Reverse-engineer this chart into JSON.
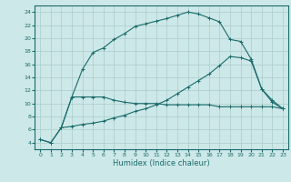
{
  "xlabel": "Humidex (Indice chaleur)",
  "bg_color": "#cde8e8",
  "line_color": "#1a6b6b",
  "grid_color": "#aacccc",
  "xlim": [
    -0.5,
    23.5
  ],
  "ylim": [
    3,
    25
  ],
  "xticks": [
    0,
    1,
    2,
    3,
    4,
    5,
    6,
    7,
    8,
    9,
    10,
    11,
    12,
    13,
    14,
    15,
    16,
    17,
    18,
    19,
    20,
    21,
    22,
    23
  ],
  "yticks": [
    4,
    6,
    8,
    10,
    12,
    14,
    16,
    18,
    20,
    22,
    24
  ],
  "curve1_x": [
    0,
    1,
    2,
    3,
    4,
    5,
    6,
    7,
    8,
    9,
    10,
    11,
    12,
    13,
    14,
    15,
    16,
    17,
    18,
    19,
    20,
    21,
    22,
    23
  ],
  "curve1_y": [
    4.5,
    4.0,
    6.3,
    11.0,
    15.2,
    17.8,
    18.5,
    19.8,
    20.7,
    21.8,
    22.2,
    22.6,
    23.0,
    23.5,
    24.0,
    23.7,
    23.1,
    22.5,
    19.8,
    19.5,
    16.8,
    12.2,
    10.2,
    9.2
  ],
  "curve2_x": [
    2,
    3,
    4,
    5,
    6,
    7,
    8,
    9,
    10,
    11,
    12,
    13,
    14,
    15,
    16,
    17,
    18,
    19,
    20,
    21,
    22,
    23
  ],
  "curve2_y": [
    6.3,
    11.0,
    11.0,
    11.0,
    11.0,
    10.5,
    10.2,
    10.0,
    10.0,
    10.0,
    9.8,
    9.8,
    9.8,
    9.8,
    9.8,
    9.5,
    9.5,
    9.5,
    9.5,
    9.5,
    9.5,
    9.2
  ],
  "curve3_x": [
    0,
    1,
    2,
    3,
    4,
    5,
    6,
    7,
    8,
    9,
    10,
    11,
    12,
    13,
    14,
    15,
    16,
    17,
    18,
    19,
    20,
    21,
    22,
    23
  ],
  "curve3_y": [
    4.5,
    4.0,
    6.3,
    6.5,
    6.8,
    7.0,
    7.3,
    7.8,
    8.2,
    8.8,
    9.2,
    9.8,
    10.5,
    11.5,
    12.5,
    13.5,
    14.5,
    15.8,
    17.2,
    17.0,
    16.5,
    12.2,
    10.5,
    9.2
  ]
}
